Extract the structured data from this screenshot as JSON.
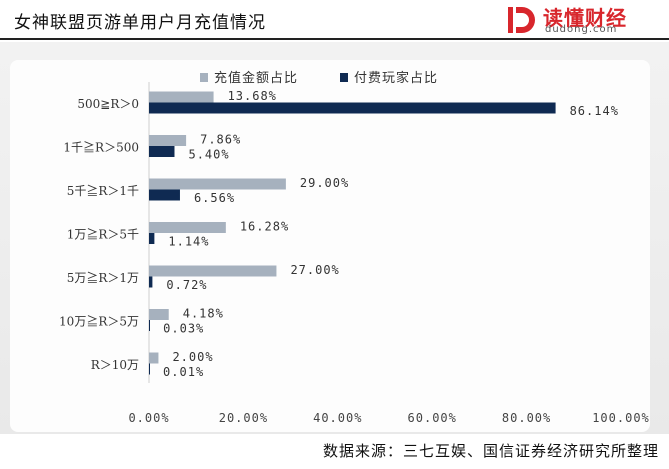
{
  "header": {
    "title": "女神联盟页游单用户月充值情况",
    "logo_text": "读懂财经",
    "logo_sub": "dudong.com"
  },
  "footer": {
    "source": "数据来源：三七互娱、国信证券经济研究所整理"
  },
  "colors": {
    "series_amount": "#a6b1be",
    "series_players": "#0f2a52",
    "logo_red": "#d8262c"
  },
  "chart_data": {
    "type": "bar",
    "orientation": "horizontal",
    "categories": [
      "500≧R＞0",
      "1千≧R＞500",
      "5千≧R＞1千",
      "1万≧R＞5千",
      "5万≧R＞1万",
      "10万≧R＞5万",
      "R＞10万"
    ],
    "series": [
      {
        "name": "充值金额占比",
        "values": [
          13.68,
          7.86,
          29.0,
          16.28,
          27.0,
          4.18,
          2.0
        ],
        "labels": [
          "13.68%",
          "7.86%",
          "29.00%",
          "16.28%",
          "27.00%",
          "4.18%",
          "2.00%"
        ]
      },
      {
        "name": "付费玩家占比",
        "values": [
          86.14,
          5.4,
          6.56,
          1.14,
          0.72,
          0.03,
          0.01
        ],
        "labels": [
          "86.14%",
          "5.40%",
          "6.56%",
          "1.14%",
          "0.72%",
          "0.03%",
          "0.01%"
        ]
      }
    ],
    "xlim": [
      0,
      100
    ],
    "xticks": [
      "0.00%",
      "20.00%",
      "40.00%",
      "60.00%",
      "80.00%",
      "100.00%"
    ],
    "grid": false,
    "legend_position": "top"
  }
}
